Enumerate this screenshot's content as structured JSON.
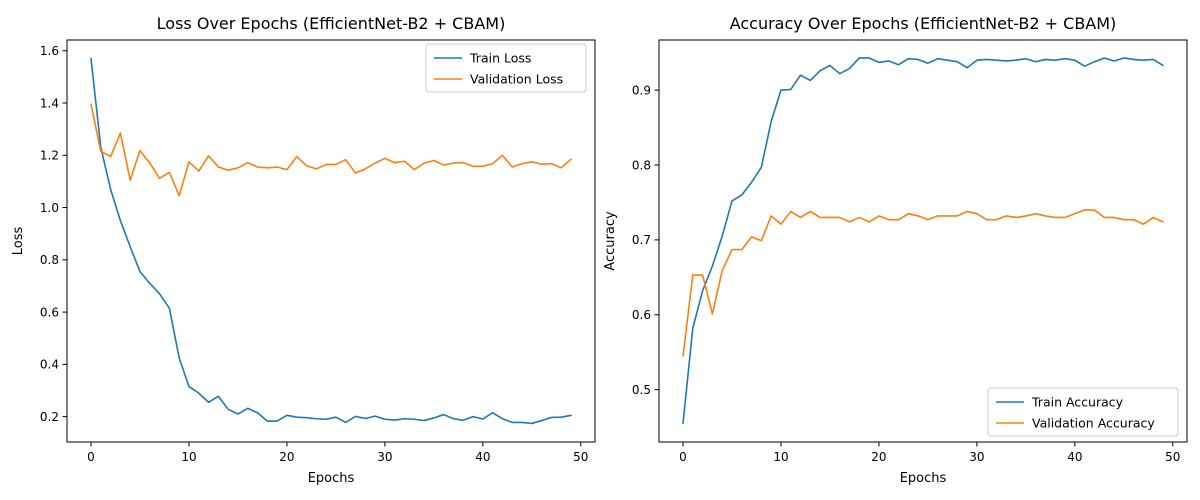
{
  "colors": {
    "train": "#1f77b4",
    "validation": "#ff7f0e"
  },
  "chart_data": [
    {
      "type": "line",
      "title": "Loss Over Epochs (EfficientNet-B2 + CBAM)",
      "xlabel": "Epochs",
      "ylabel": "Loss",
      "xlim": [
        -2.45,
        51.45
      ],
      "ylim": [
        0.103,
        1.641
      ],
      "xticks": [
        0,
        10,
        20,
        30,
        40,
        50
      ],
      "yticks": [
        0.2,
        0.4,
        0.6,
        0.8,
        1.0,
        1.2,
        1.4,
        1.6
      ],
      "ytick_labels": [
        "0.2",
        "0.4",
        "0.6",
        "0.8",
        "1.0",
        "1.2",
        "1.4",
        "1.6"
      ],
      "grid": false,
      "legend_position": "top-right",
      "series": [
        {
          "name": "Train Loss",
          "color": "#1f77b4",
          "x": [
            0,
            1,
            2,
            3,
            4,
            5,
            6,
            7,
            8,
            9,
            10,
            11,
            12,
            13,
            14,
            15,
            16,
            17,
            18,
            19,
            20,
            21,
            22,
            23,
            24,
            25,
            26,
            27,
            28,
            29,
            30,
            31,
            32,
            33,
            34,
            35,
            36,
            37,
            38,
            39,
            40,
            41,
            42,
            43,
            44,
            45,
            46,
            47,
            48,
            49
          ],
          "values": [
            1.57,
            1.23,
            1.07,
            0.95,
            0.85,
            0.755,
            0.71,
            0.67,
            0.615,
            0.425,
            0.315,
            0.29,
            0.255,
            0.278,
            0.228,
            0.21,
            0.232,
            0.215,
            0.183,
            0.183,
            0.205,
            0.198,
            0.196,
            0.192,
            0.19,
            0.198,
            0.178,
            0.201,
            0.193,
            0.202,
            0.19,
            0.187,
            0.192,
            0.19,
            0.185,
            0.195,
            0.208,
            0.192,
            0.186,
            0.2,
            0.191,
            0.215,
            0.192,
            0.178,
            0.178,
            0.174,
            0.185,
            0.197,
            0.198,
            0.205
          ]
        },
        {
          "name": "Validation Loss",
          "color": "#ff7f0e",
          "x": [
            0,
            1,
            2,
            3,
            4,
            5,
            6,
            7,
            8,
            9,
            10,
            11,
            12,
            13,
            14,
            15,
            16,
            17,
            18,
            19,
            20,
            21,
            22,
            23,
            24,
            25,
            26,
            27,
            28,
            29,
            30,
            31,
            32,
            33,
            34,
            35,
            36,
            37,
            38,
            39,
            40,
            41,
            42,
            43,
            44,
            45,
            46,
            47,
            48,
            49
          ],
          "values": [
            1.395,
            1.215,
            1.195,
            1.285,
            1.105,
            1.218,
            1.17,
            1.112,
            1.135,
            1.045,
            1.175,
            1.14,
            1.198,
            1.155,
            1.143,
            1.152,
            1.172,
            1.155,
            1.152,
            1.155,
            1.145,
            1.195,
            1.16,
            1.148,
            1.165,
            1.165,
            1.183,
            1.132,
            1.148,
            1.17,
            1.188,
            1.172,
            1.177,
            1.145,
            1.17,
            1.18,
            1.163,
            1.17,
            1.172,
            1.158,
            1.158,
            1.168,
            1.2,
            1.155,
            1.168,
            1.175,
            1.166,
            1.168,
            1.152,
            1.185
          ]
        }
      ]
    },
    {
      "type": "line",
      "title": "Accuracy Over Epochs (EfficientNet-B2 + CBAM)",
      "xlabel": "Epochs",
      "ylabel": "Accuracy",
      "xlim": [
        -2.45,
        51.45
      ],
      "ylim": [
        0.43,
        0.967
      ],
      "xticks": [
        0,
        10,
        20,
        30,
        40,
        50
      ],
      "yticks": [
        0.5,
        0.6,
        0.7,
        0.8,
        0.9
      ],
      "ytick_labels": [
        "0.5",
        "0.6",
        "0.7",
        "0.8",
        "0.9"
      ],
      "grid": false,
      "legend_position": "bottom-right",
      "series": [
        {
          "name": "Train Accuracy",
          "color": "#1f77b4",
          "x": [
            0,
            1,
            2,
            3,
            4,
            5,
            6,
            7,
            8,
            9,
            10,
            11,
            12,
            13,
            14,
            15,
            16,
            17,
            18,
            19,
            20,
            21,
            22,
            23,
            24,
            25,
            26,
            27,
            28,
            29,
            30,
            31,
            32,
            33,
            34,
            35,
            36,
            37,
            38,
            39,
            40,
            41,
            42,
            43,
            44,
            45,
            46,
            47,
            48,
            49
          ],
          "values": [
            0.455,
            0.582,
            0.632,
            0.665,
            0.705,
            0.752,
            0.76,
            0.777,
            0.797,
            0.858,
            0.9,
            0.901,
            0.92,
            0.913,
            0.926,
            0.933,
            0.922,
            0.929,
            0.943,
            0.943,
            0.937,
            0.939,
            0.934,
            0.942,
            0.941,
            0.936,
            0.942,
            0.94,
            0.938,
            0.93,
            0.94,
            0.941,
            0.94,
            0.939,
            0.94,
            0.942,
            0.938,
            0.941,
            0.94,
            0.942,
            0.94,
            0.932,
            0.938,
            0.943,
            0.939,
            0.943,
            0.941,
            0.94,
            0.941,
            0.933
          ]
        },
        {
          "name": "Validation Accuracy",
          "color": "#ff7f0e",
          "x": [
            0,
            1,
            2,
            3,
            4,
            5,
            6,
            7,
            8,
            9,
            10,
            11,
            12,
            13,
            14,
            15,
            16,
            17,
            18,
            19,
            20,
            21,
            22,
            23,
            24,
            25,
            26,
            27,
            28,
            29,
            30,
            31,
            32,
            33,
            34,
            35,
            36,
            37,
            38,
            39,
            40,
            41,
            42,
            43,
            44,
            45,
            46,
            47,
            48,
            49
          ],
          "values": [
            0.545,
            0.653,
            0.653,
            0.601,
            0.659,
            0.687,
            0.687,
            0.704,
            0.699,
            0.732,
            0.721,
            0.738,
            0.73,
            0.738,
            0.73,
            0.73,
            0.73,
            0.724,
            0.73,
            0.724,
            0.732,
            0.727,
            0.727,
            0.735,
            0.732,
            0.727,
            0.732,
            0.732,
            0.732,
            0.738,
            0.735,
            0.727,
            0.727,
            0.732,
            0.73,
            0.732,
            0.735,
            0.732,
            0.73,
            0.73,
            0.735,
            0.74,
            0.74,
            0.73,
            0.73,
            0.727,
            0.727,
            0.721,
            0.73,
            0.724
          ]
        }
      ]
    }
  ]
}
